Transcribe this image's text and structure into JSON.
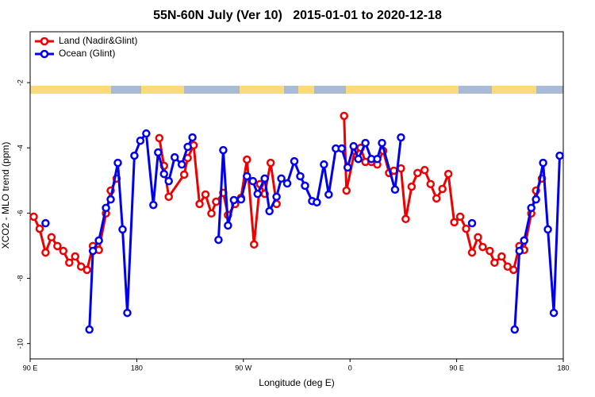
{
  "chart_data": {
    "type": "line",
    "title": "55N-60N July (Ver 10)   2015-01-01 to 2020-12-18",
    "x_label": "Longitude (deg E)",
    "y_label": "XCO2 - MLO trend (ppm)",
    "xlim": [
      -270,
      180
    ],
    "ylim": [
      -10.47,
      -0.44
    ],
    "xticks": [
      {
        "value": -270,
        "label": "90 E"
      },
      {
        "value": -180,
        "label": "180"
      },
      {
        "value": -90,
        "label": "90 W"
      },
      0,
      {
        "value": 90,
        "label": "90 E"
      },
      180
    ],
    "yticks": [
      -2,
      -4,
      -6,
      -8,
      -10
    ],
    "legend": "top-left",
    "series": [
      {
        "name": "Land (Nadir&Glint)",
        "color": "#ee0000",
        "x": [
          -267,
          -262,
          -257,
          -252,
          -247,
          -242,
          -237,
          -232,
          -227,
          -222,
          -217,
          -212,
          -206,
          -202,
          -197,
          null,
          -161,
          -157,
          -153,
          -140,
          -137,
          -132,
          -127,
          -122,
          -117,
          -113,
          -107,
          -103,
          -97,
          -92,
          -87,
          -81,
          -76,
          -72,
          -67,
          -62,
          null,
          -5,
          -3,
          4,
          9,
          13,
          18,
          23,
          28,
          33,
          37,
          43,
          47,
          52,
          57,
          63,
          68,
          73,
          78,
          83,
          88,
          93,
          98,
          103,
          108,
          112,
          118,
          122,
          128,
          133,
          138,
          143,
          147,
          153,
          157,
          162
        ],
        "values": [
          -6.11,
          -6.48,
          -7.21,
          -6.74,
          -7.01,
          -7.16,
          -7.52,
          -7.33,
          -7.64,
          -7.74,
          -7.01,
          -7.13,
          -6.01,
          -5.31,
          -4.94,
          null,
          -3.7,
          -4.55,
          -5.5,
          -4.82,
          -4.31,
          -3.92,
          -5.72,
          -5.43,
          -6.01,
          -5.65,
          -5.38,
          -6.06,
          -5.72,
          -5.53,
          -4.36,
          -6.96,
          -5.11,
          -5.41,
          -4.46,
          -5.72,
          null,
          -3.02,
          -5.31,
          -4.09,
          -4.0,
          -4.43,
          -4.43,
          -4.51,
          -4.09,
          -4.77,
          -4.7,
          -4.63,
          -6.18,
          -5.19,
          -4.77,
          -4.68,
          -5.11,
          -5.55,
          -5.26,
          -4.8,
          -6.28,
          -6.11,
          -6.48,
          -7.21,
          -6.74,
          -7.04,
          -7.16,
          -7.52,
          -7.33,
          -7.64,
          -7.74,
          -7.01,
          -7.13,
          -6.01,
          -5.31,
          -4.94
        ]
      },
      {
        "name": "Ocean (Glint)",
        "color": "#0000ee",
        "x": [
          -257,
          null,
          -220,
          -217,
          -212,
          -206,
          -202,
          -196,
          -192,
          -188,
          -182,
          -177,
          -172,
          -166,
          -162,
          -157,
          -153,
          -148,
          -142,
          -137,
          -133,
          null,
          -111,
          -107,
          -103,
          -98,
          -92,
          -87,
          -82,
          -78,
          -72,
          -68,
          -62,
          -58,
          -53,
          -47,
          -42,
          -38,
          -32,
          -28,
          -22,
          -18,
          -12,
          -7,
          -2,
          3,
          7,
          13,
          18,
          23,
          27,
          38,
          43,
          null,
          103,
          null,
          139,
          143,
          147,
          153,
          157,
          163,
          167,
          172,
          177
        ],
        "values": [
          -6.31,
          null,
          -9.57,
          -7.16,
          -6.84,
          -5.84,
          -5.58,
          -4.46,
          -6.5,
          -9.06,
          -4.24,
          -3.78,
          -3.56,
          -5.75,
          -4.14,
          -4.8,
          -5.02,
          -4.29,
          -4.51,
          -3.97,
          -3.68,
          null,
          -6.82,
          -4.07,
          -6.38,
          -5.6,
          -5.58,
          -4.87,
          -5.02,
          -5.41,
          -4.94,
          -5.94,
          -5.5,
          -4.94,
          -5.09,
          -4.41,
          -4.87,
          -5.16,
          -5.63,
          -5.67,
          -4.51,
          -5.43,
          -4.02,
          -4.02,
          -4.6,
          -3.95,
          -4.34,
          -3.85,
          -4.34,
          -4.34,
          -3.85,
          -5.28,
          -3.68,
          null,
          -6.31,
          null,
          -9.57,
          -7.16,
          -6.84,
          -5.84,
          -5.58,
          -4.46,
          -6.5,
          -9.06,
          -4.24
        ]
      }
    ]
  }
}
